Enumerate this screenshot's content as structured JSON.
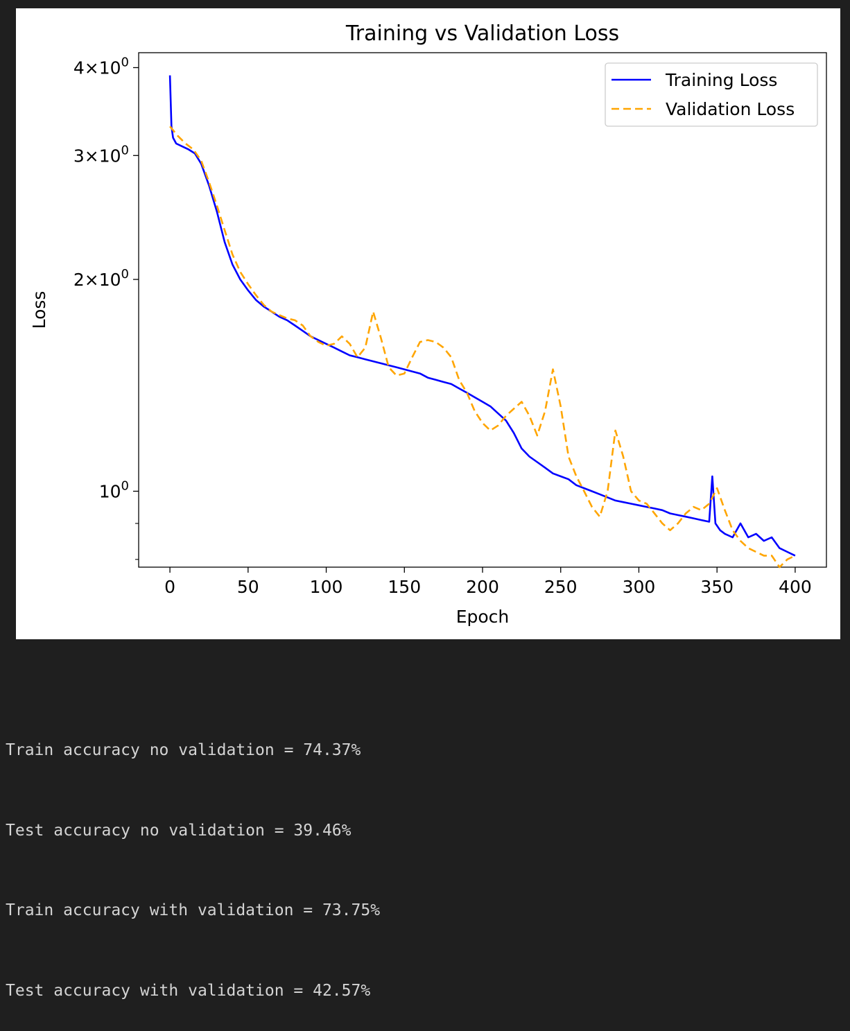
{
  "chart_data": {
    "type": "line",
    "title": "Training vs Validation Loss",
    "xlabel": "Epoch",
    "ylabel": "Loss",
    "x_range": [
      -20,
      420
    ],
    "y_range": [
      0.78,
      4.2
    ],
    "y_scale": "log",
    "x_ticks": [
      0,
      50,
      100,
      150,
      200,
      250,
      300,
      350,
      400
    ],
    "y_major_ticks": [
      {
        "value": 1,
        "base": "10",
        "exp": "0",
        "label": "10^0"
      },
      {
        "value": 2,
        "coef": "2",
        "base": "10",
        "exp": "0",
        "label": "2 × 10^0"
      },
      {
        "value": 3,
        "coef": "3",
        "base": "10",
        "exp": "0",
        "label": "3 × 10^0"
      },
      {
        "value": 4,
        "coef": "4",
        "base": "10",
        "exp": "0",
        "label": "4 × 10^0"
      }
    ],
    "y_minor_ticks": [
      0.8,
      0.9
    ],
    "grid": false,
    "legend_position": "top-right",
    "series": [
      {
        "name": "Training Loss",
        "color": "#0000ff",
        "style": "solid",
        "x": [
          0,
          1,
          2,
          4,
          8,
          12,
          16,
          20,
          25,
          30,
          35,
          40,
          45,
          50,
          55,
          60,
          65,
          70,
          75,
          80,
          85,
          90,
          95,
          100,
          105,
          110,
          115,
          120,
          125,
          130,
          135,
          140,
          145,
          150,
          155,
          160,
          165,
          170,
          175,
          180,
          185,
          190,
          195,
          200,
          205,
          210,
          215,
          220,
          225,
          230,
          235,
          240,
          245,
          250,
          255,
          260,
          265,
          270,
          275,
          280,
          285,
          290,
          295,
          300,
          305,
          310,
          315,
          320,
          325,
          330,
          335,
          340,
          345,
          347,
          349,
          352,
          355,
          360,
          365,
          370,
          375,
          380,
          385,
          390,
          395,
          400
        ],
        "y": [
          3.9,
          3.3,
          3.18,
          3.12,
          3.09,
          3.06,
          3.02,
          2.92,
          2.72,
          2.5,
          2.26,
          2.1,
          2.0,
          1.93,
          1.87,
          1.83,
          1.8,
          1.77,
          1.75,
          1.72,
          1.69,
          1.66,
          1.64,
          1.62,
          1.6,
          1.58,
          1.56,
          1.55,
          1.54,
          1.53,
          1.52,
          1.51,
          1.5,
          1.49,
          1.48,
          1.47,
          1.45,
          1.44,
          1.43,
          1.42,
          1.4,
          1.38,
          1.36,
          1.34,
          1.32,
          1.29,
          1.26,
          1.21,
          1.15,
          1.12,
          1.1,
          1.08,
          1.06,
          1.05,
          1.04,
          1.02,
          1.01,
          1.0,
          0.99,
          0.98,
          0.97,
          0.965,
          0.96,
          0.955,
          0.95,
          0.945,
          0.94,
          0.93,
          0.925,
          0.92,
          0.915,
          0.91,
          0.905,
          1.05,
          0.9,
          0.88,
          0.87,
          0.86,
          0.9,
          0.86,
          0.87,
          0.85,
          0.86,
          0.83,
          0.82,
          0.81
        ]
      },
      {
        "name": "Validation Loss",
        "color": "#ffa500",
        "style": "dashed",
        "x": [
          0,
          5,
          10,
          15,
          20,
          25,
          30,
          35,
          40,
          45,
          50,
          55,
          60,
          65,
          70,
          75,
          80,
          85,
          90,
          95,
          100,
          105,
          110,
          115,
          120,
          125,
          130,
          135,
          140,
          145,
          150,
          155,
          160,
          165,
          170,
          175,
          180,
          185,
          190,
          195,
          200,
          205,
          210,
          215,
          220,
          225,
          230,
          235,
          240,
          245,
          250,
          255,
          260,
          265,
          270,
          275,
          280,
          285,
          290,
          295,
          300,
          305,
          310,
          315,
          320,
          325,
          330,
          335,
          340,
          345,
          350,
          355,
          360,
          365,
          370,
          375,
          380,
          385,
          390,
          395,
          400
        ],
        "y": [
          3.3,
          3.2,
          3.12,
          3.06,
          2.95,
          2.75,
          2.55,
          2.35,
          2.17,
          2.05,
          1.97,
          1.9,
          1.84,
          1.8,
          1.78,
          1.76,
          1.75,
          1.72,
          1.66,
          1.63,
          1.61,
          1.62,
          1.66,
          1.62,
          1.55,
          1.6,
          1.8,
          1.65,
          1.5,
          1.46,
          1.47,
          1.55,
          1.63,
          1.64,
          1.63,
          1.6,
          1.55,
          1.44,
          1.38,
          1.3,
          1.25,
          1.22,
          1.24,
          1.28,
          1.31,
          1.34,
          1.28,
          1.2,
          1.3,
          1.49,
          1.32,
          1.12,
          1.05,
          1.0,
          0.95,
          0.92,
          1.0,
          1.22,
          1.12,
          1.0,
          0.97,
          0.96,
          0.93,
          0.9,
          0.88,
          0.9,
          0.93,
          0.95,
          0.94,
          0.96,
          1.01,
          0.94,
          0.88,
          0.85,
          0.83,
          0.82,
          0.81,
          0.81,
          0.78,
          0.8,
          0.81
        ]
      }
    ]
  },
  "output_lines": [
    "Train accuracy no validation = 74.37%",
    "Test accuracy no validation = 39.46%",
    "Train accuracy with validation = 73.75%",
    "Test accuracy with validation = 42.57%"
  ]
}
